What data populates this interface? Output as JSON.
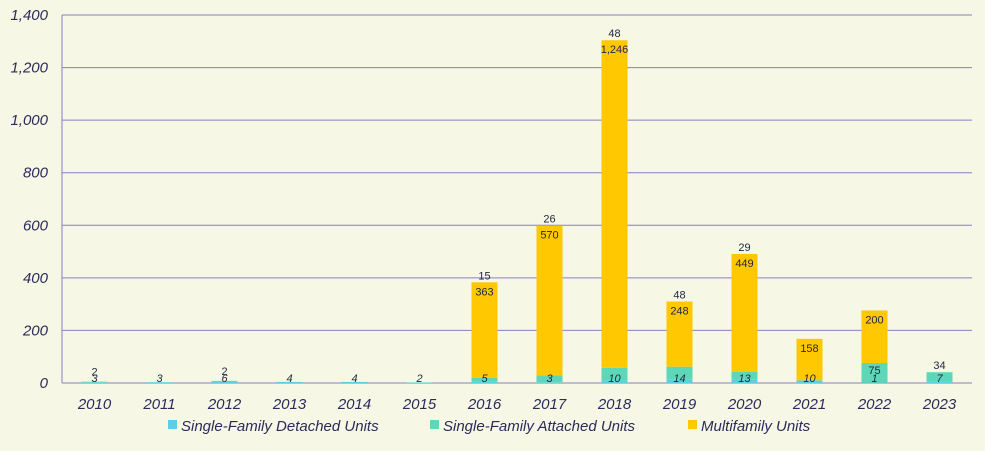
{
  "chart_data": {
    "type": "bar",
    "stacked": true,
    "categories": [
      "2010",
      "2011",
      "2012",
      "2013",
      "2014",
      "2015",
      "2016",
      "2017",
      "2018",
      "2019",
      "2020",
      "2021",
      "2022",
      "2023"
    ],
    "series": [
      {
        "name": "Single-Family Detached Units",
        "color": "#5ecfe0",
        "values": [
          3,
          3,
          6,
          4,
          4,
          2,
          5,
          3,
          10,
          14,
          13,
          10,
          1,
          7
        ],
        "labels": [
          "3",
          "3",
          "6",
          "4",
          "4",
          "2",
          "5",
          "3",
          "10",
          "14",
          "13",
          "10",
          "1",
          "7"
        ]
      },
      {
        "name": "Single-Family Attached Units",
        "color": "#5ed6b8",
        "values": [
          2,
          0,
          2,
          0,
          0,
          0,
          15,
          26,
          48,
          48,
          29,
          0,
          75,
          34
        ],
        "labels": [
          "2",
          "",
          "2",
          "",
          "",
          "",
          "15",
          "26",
          "48",
          "48",
          "29",
          "",
          "75",
          "34"
        ]
      },
      {
        "name": "Multifamily Units",
        "color": "#ffc800",
        "values": [
          0,
          0,
          0,
          0,
          0,
          0,
          363,
          570,
          1246,
          248,
          449,
          158,
          200,
          0
        ],
        "labels": [
          "",
          "",
          "",
          "",
          "",
          "",
          "363",
          "570",
          "1,246",
          "248",
          "449",
          "158",
          "200",
          ""
        ]
      }
    ],
    "ylim": [
      0,
      1400
    ],
    "yticks": [
      0,
      200,
      400,
      600,
      800,
      1000,
      1200,
      1400
    ],
    "ytick_labels": [
      "0",
      "200",
      "400",
      "600",
      "800",
      "1,000",
      "1,200",
      "1,400"
    ],
    "grid": true,
    "legend_position": "bottom",
    "title": "",
    "xlabel": "",
    "ylabel": ""
  },
  "colors": {
    "background": "#f6f7e4",
    "grid": "#8a7fc0",
    "axis_text": "#2b2b5a"
  }
}
